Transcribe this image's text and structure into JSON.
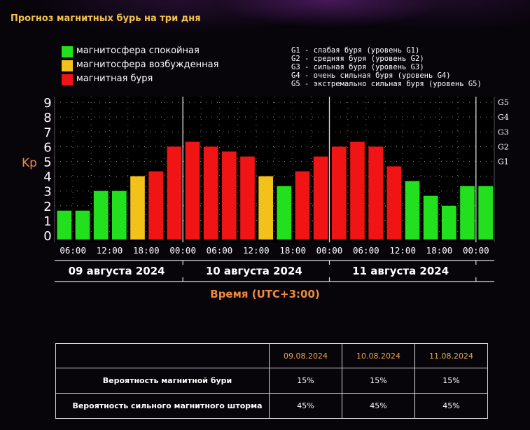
{
  "title": "Прогноз магнитных бурь на три дня",
  "legend": [
    {
      "label": "магнитосфера спокойная",
      "color": "#22e01e"
    },
    {
      "label": "магнитосфера возбужденная",
      "color": "#f2c21a"
    },
    {
      "label": "магнитная буря",
      "color": "#f01414"
    }
  ],
  "g_legend": [
    "G1 - слабая буря (уровень G1)",
    "G2 - средняя буря (уровень G2)",
    "G3 - сильная буря (уровень G3)",
    "G4 - очень сильная буря (уровень G4)",
    "G5 - экстремально сильная буря (уровень G5)"
  ],
  "chart_data": {
    "type": "bar",
    "ylabel": "Kp",
    "xlabel": "Время (UTC+3:00)",
    "ylim": [
      0,
      9
    ],
    "y_ticks": [
      "0",
      "1",
      "2",
      "3",
      "4",
      "5",
      "6",
      "7",
      "8",
      "9"
    ],
    "g_levels": [
      {
        "label": "G1",
        "kp": 5
      },
      {
        "label": "G2",
        "kp": 6
      },
      {
        "label": "G3",
        "kp": 7
      },
      {
        "label": "G4",
        "kp": 8
      },
      {
        "label": "G5",
        "kp": 9
      }
    ],
    "x_tick_labels": [
      "06:00",
      "12:00",
      "18:00",
      "00:00",
      "06:00",
      "12:00",
      "18:00",
      "00:00",
      "06:00",
      "12:00",
      "18:00",
      "00:00"
    ],
    "days": [
      "09 августа 2024",
      "10 августа 2024",
      "11 августа 2024"
    ],
    "values": [
      1.67,
      1.67,
      3,
      3,
      4,
      4.33,
      6,
      6.33,
      6,
      5.67,
      5.33,
      4,
      3.33,
      4.33,
      5.33,
      6,
      6.33,
      6,
      4.67,
      3.67,
      2.67,
      2,
      3.33,
      3.33
    ],
    "colors": {
      "quiet": "#22e01e",
      "active": "#f2c21a",
      "storm": "#f01414"
    },
    "grid": true
  },
  "table": {
    "headers": [
      "09.08.2024",
      "10.08.2024",
      "11.08.2024"
    ],
    "rows": [
      {
        "label": "Вероятность магнитной бури",
        "values": [
          "15%",
          "15%",
          "15%"
        ]
      },
      {
        "label": "Вероятность сильного магнитного шторма",
        "values": [
          "45%",
          "45%",
          "45%"
        ]
      }
    ]
  }
}
